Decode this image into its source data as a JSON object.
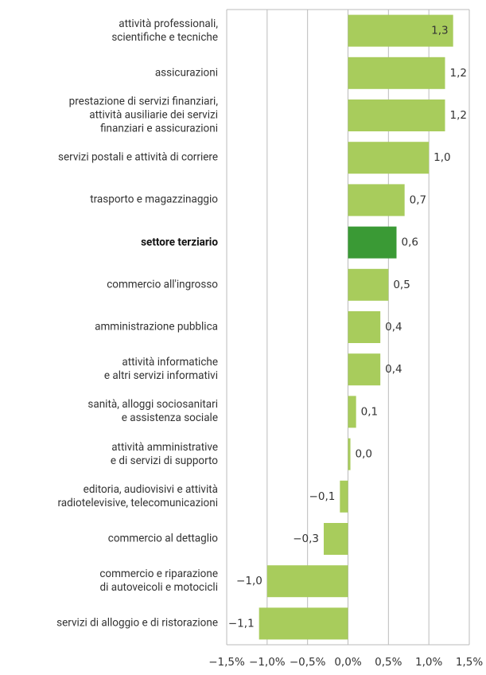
{
  "chart_data": {
    "type": "bar",
    "orientation": "horizontal",
    "categories": [
      "attività professionali,\nscientifiche e tecniche",
      "assicurazioni",
      "prestazione di servizi finanziari,\nattività ausiliarie dei servizi\nfinanziari e assicurazioni",
      "servizi postali e attività di corriere",
      "trasporto e magazzinaggio",
      "settore terziario",
      "commercio all'ingrosso",
      "amministrazione pubblica",
      "attività informatiche\ne altri servizi informativi",
      "sanità, alloggi sociosanitari\ne assistenza sociale",
      "attività amministrative\ne di servizi di supporto",
      "editoria, audiovisivi e attività\nradiotelevisive, telecomunicazioni",
      "commercio al dettaglio",
      "commercio e riparazione\ndi autoveicoli e motocicli",
      "servizi di alloggio e di ristorazione"
    ],
    "values": [
      1.3,
      1.2,
      1.2,
      1.0,
      0.7,
      0.6,
      0.5,
      0.4,
      0.4,
      0.1,
      0.03,
      -0.1,
      -0.3,
      -1.0,
      -1.1
    ],
    "value_labels": [
      "1,3",
      "1,2",
      "1,2",
      "1,0",
      "0,7",
      "0,6",
      "0,5",
      "0,4",
      "0,4",
      "0,1",
      "0,0",
      "−0,1",
      "−0,3",
      "−1,0",
      "−1,1"
    ],
    "colors": [
      "#a8cc5c",
      "#a8cc5c",
      "#a8cc5c",
      "#a8cc5c",
      "#a8cc5c",
      "#3a9a35",
      "#a8cc5c",
      "#a8cc5c",
      "#a8cc5c",
      "#a8cc5c",
      "#a8cc5c",
      "#a8cc5c",
      "#a8cc5c",
      "#a8cc5c",
      "#a8cc5c"
    ],
    "bold_categories": [
      5
    ],
    "xlim": [
      -1.5,
      1.5
    ],
    "xticks": [
      {
        "value": -1.5,
        "label": "−1,5%"
      },
      {
        "value": -1.0,
        "label": "−1,0%"
      },
      {
        "value": -0.5,
        "label": "−0,5%"
      },
      {
        "value": 0.0,
        "label": "0,0%"
      },
      {
        "value": 0.5,
        "label": "0,5%"
      },
      {
        "value": 1.0,
        "label": "1,0%"
      },
      {
        "value": 1.5,
        "label": "1,5%"
      }
    ],
    "grid": true
  }
}
